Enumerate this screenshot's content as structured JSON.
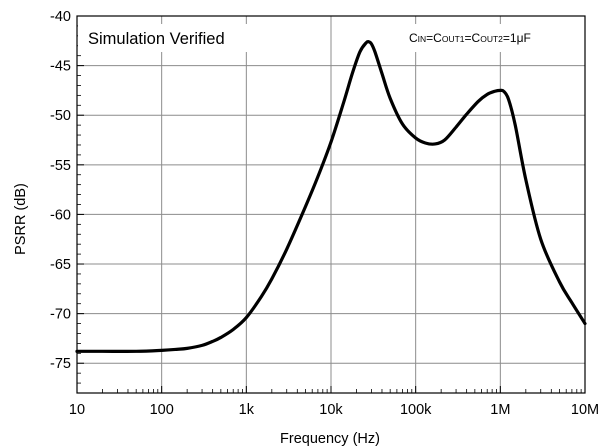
{
  "chart_data": {
    "type": "line",
    "xscale": "log",
    "xlabel": "Frequency (Hz)",
    "ylabel": "PSRR (dB)",
    "xlim": [
      10,
      10000000
    ],
    "ylim": [
      -78,
      -40
    ],
    "grid": true,
    "x_ticks": [
      {
        "value": 10,
        "label": "10"
      },
      {
        "value": 100,
        "label": "100"
      },
      {
        "value": 1000,
        "label": "1k"
      },
      {
        "value": 10000,
        "label": "10k"
      },
      {
        "value": 100000,
        "label": "100k"
      },
      {
        "value": 1000000,
        "label": "1M"
      },
      {
        "value": 10000000,
        "label": "10M"
      }
    ],
    "y_ticks": [
      {
        "value": -40,
        "label": "-40"
      },
      {
        "value": -45,
        "label": "-45"
      },
      {
        "value": -50,
        "label": "-50"
      },
      {
        "value": -55,
        "label": "-55"
      },
      {
        "value": -60,
        "label": "-60"
      },
      {
        "value": -65,
        "label": "-65"
      },
      {
        "value": -70,
        "label": "-70"
      },
      {
        "value": -75,
        "label": "-75"
      }
    ],
    "annotations": {
      "top_left": "Simulation Verified",
      "top_right_parts": [
        {
          "text": "C",
          "sub": false
        },
        {
          "text": "IN",
          "sub": true
        },
        {
          "text": "=C",
          "sub": false
        },
        {
          "text": "OUT1",
          "sub": true
        },
        {
          "text": "=C",
          "sub": false
        },
        {
          "text": "OUT2",
          "sub": true
        },
        {
          "text": "=1μF",
          "sub": false
        }
      ]
    },
    "series": [
      {
        "color": "#000000",
        "x": [
          10,
          20,
          50,
          100,
          150,
          200,
          300,
          400,
          500,
          700,
          1000,
          1500,
          2000,
          3000,
          5000,
          7000,
          10000,
          14000,
          18000,
          22000,
          26000,
          28000,
          30000,
          33000,
          40000,
          50000,
          70000,
          100000,
          130000,
          170000,
          220000,
          300000,
          400000,
          550000,
          700000,
          850000,
          1000000,
          1100000,
          1250000,
          1500000,
          2000000,
          3000000,
          5000000,
          7000000,
          10000000
        ],
        "y": [
          -73.8,
          -73.8,
          -73.8,
          -73.7,
          -73.6,
          -73.5,
          -73.2,
          -72.8,
          -72.4,
          -71.6,
          -70.4,
          -68.3,
          -66.5,
          -63.5,
          -59.2,
          -56.2,
          -52.7,
          -48.8,
          -45.7,
          -43.6,
          -42.7,
          -42.6,
          -42.8,
          -43.6,
          -45.8,
          -48.3,
          -50.9,
          -52.3,
          -52.8,
          -52.9,
          -52.5,
          -51.2,
          -49.9,
          -48.6,
          -47.9,
          -47.6,
          -47.5,
          -47.6,
          -48.4,
          -51.0,
          -56.5,
          -62.5,
          -66.8,
          -68.9,
          -71.0
        ]
      }
    ]
  }
}
